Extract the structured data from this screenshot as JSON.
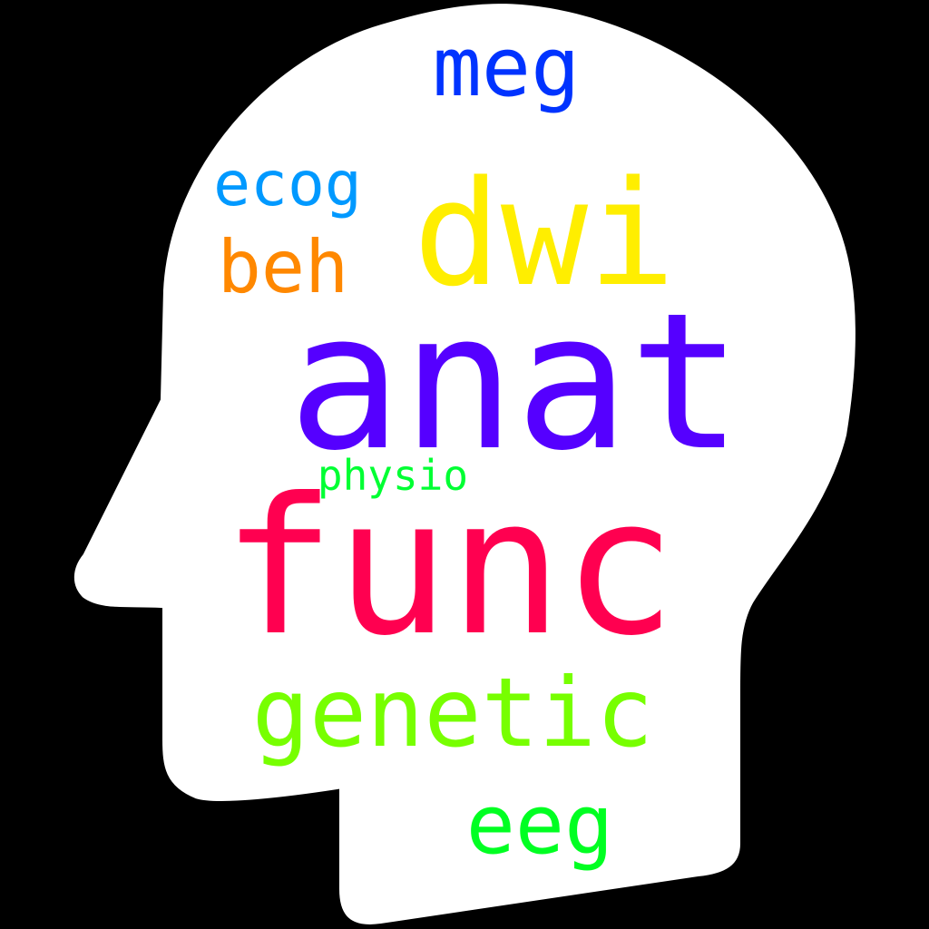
{
  "background_color": "#000000",
  "shape": {
    "fill": "#ffffff",
    "outline": "#000000"
  },
  "words": [
    {
      "id": "anat",
      "text": "anat",
      "color": "#5500ff"
    },
    {
      "id": "func",
      "text": "func",
      "color": "#ff0050"
    },
    {
      "id": "dwi",
      "text": "dwi",
      "color": "#ffee00"
    },
    {
      "id": "genetic",
      "text": "genetic",
      "color": "#77ff00"
    },
    {
      "id": "meg",
      "text": "meg",
      "color": "#0033ff"
    },
    {
      "id": "eeg",
      "text": "eeg",
      "color": "#00ff22"
    },
    {
      "id": "beh",
      "text": "beh",
      "color": "#ff8800"
    },
    {
      "id": "ecog",
      "text": "ecog",
      "color": "#0099ff"
    },
    {
      "id": "physio",
      "text": "physio",
      "color": "#00ff33"
    }
  ]
}
